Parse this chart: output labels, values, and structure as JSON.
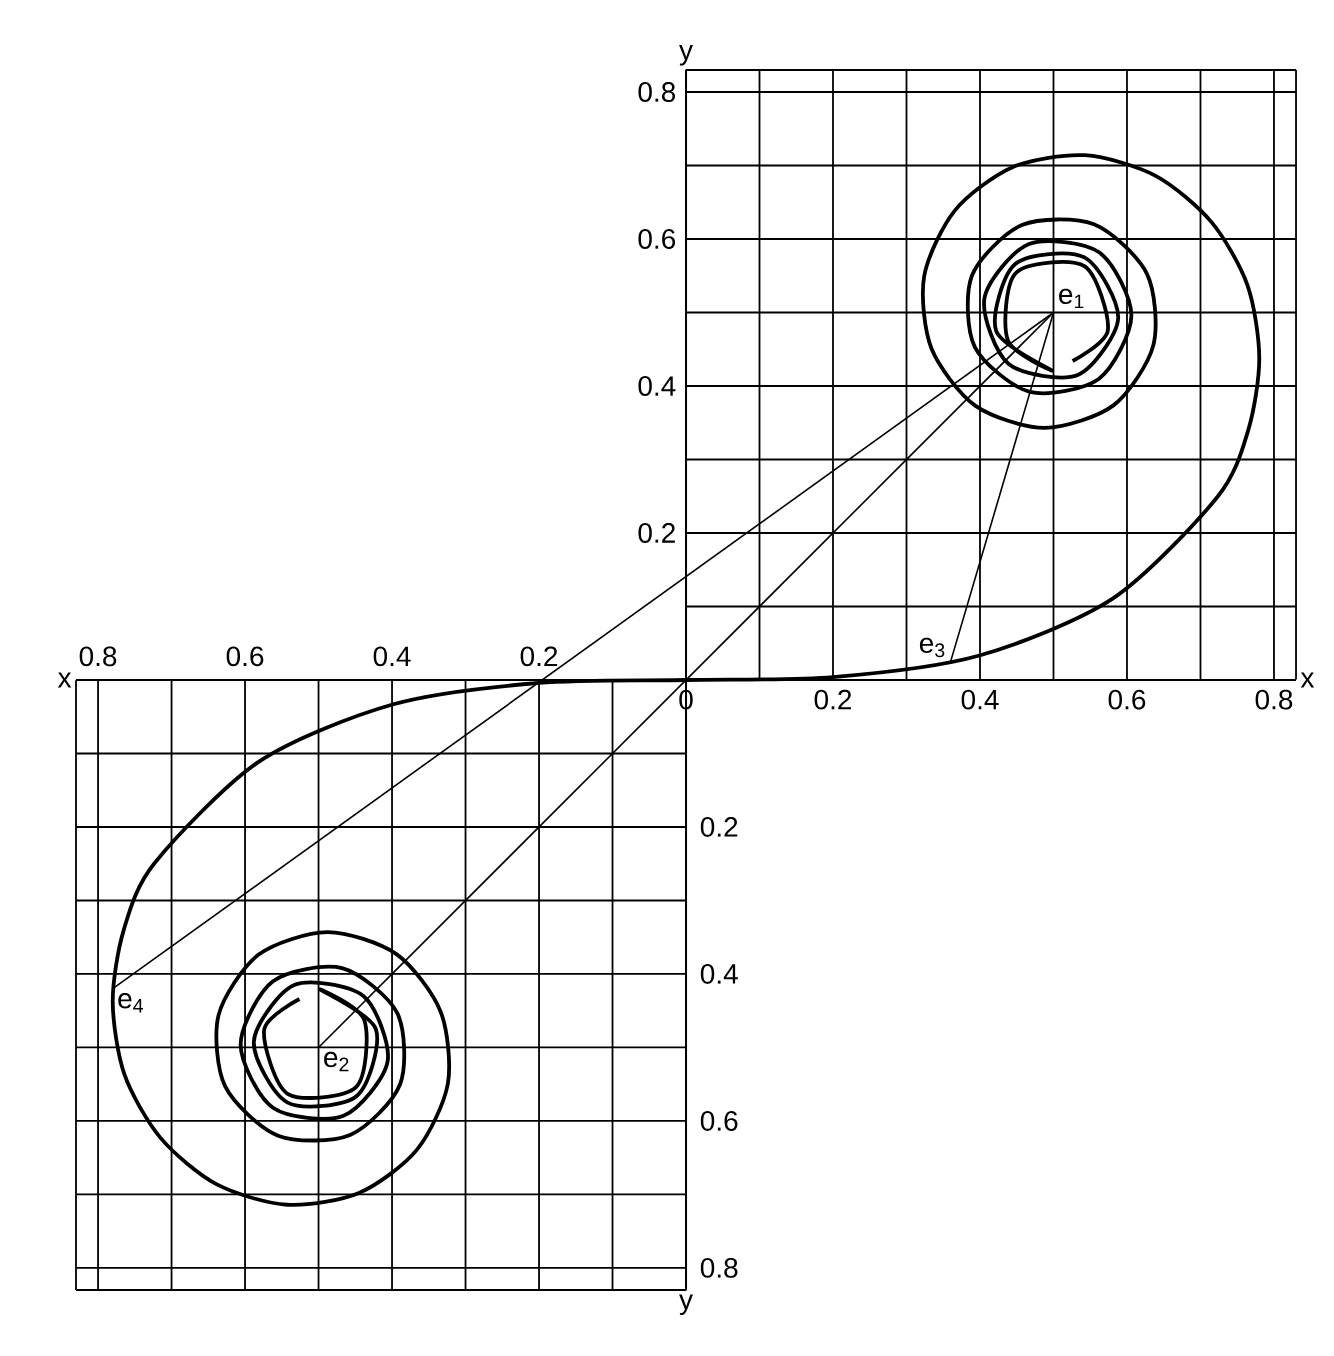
{
  "chart_data": {
    "type": "line",
    "xlabel": "x",
    "ylabel": "y",
    "xlim": [
      -0.83,
      0.83
    ],
    "ylim": [
      -0.83,
      0.83
    ],
    "x2lim": [
      -0.83,
      0.83
    ],
    "y2lim": [
      -0.83,
      0.83
    ],
    "grid": true,
    "xticks": [
      0,
      0.2,
      0.4,
      0.6,
      0.8
    ],
    "x2ticks": [
      {
        "value": -0.8,
        "label": "0.8"
      },
      {
        "value": -0.6,
        "label": "0.6"
      },
      {
        "value": -0.4,
        "label": "0.4"
      },
      {
        "value": -0.2,
        "label": "0.2"
      }
    ],
    "yticks": [
      0.2,
      0.4,
      0.6,
      0.8
    ],
    "y2ticks": [
      {
        "value": -0.2,
        "label": "0.2"
      },
      {
        "value": -0.4,
        "label": "0.4"
      },
      {
        "value": -0.6,
        "label": "0.6"
      },
      {
        "value": -0.8,
        "label": "0.8"
      }
    ],
    "series": [
      {
        "color": "#000000",
        "x": [
          -0.526,
          -0.574,
          -0.542,
          -0.449,
          -0.438,
          -0.498,
          -0.422,
          -0.448,
          -0.542,
          -0.588,
          -0.533,
          -0.439,
          -0.406,
          -0.466,
          -0.562,
          -0.606,
          -0.562,
          -0.468,
          -0.393,
          -0.389,
          -0.457,
          -0.555,
          -0.627,
          -0.636,
          -0.582,
          -0.488,
          -0.394,
          -0.334,
          -0.324,
          -0.366,
          -0.445,
          -0.543,
          -0.639,
          -0.715,
          -0.764,
          -0.78,
          -0.765,
          -0.723,
          -0.581,
          -0.398,
          -0.2,
          0,
          0.2,
          0.398,
          0.581,
          0.723,
          0.765,
          0.78,
          0.764,
          0.715,
          0.639,
          0.543,
          0.445,
          0.366,
          0.324,
          0.334,
          0.394,
          0.488,
          0.582,
          0.636,
          0.627,
          0.555,
          0.457,
          0.389,
          0.393,
          0.468,
          0.562,
          0.606,
          0.562,
          0.466,
          0.406,
          0.439,
          0.533,
          0.588,
          0.542,
          0.448,
          0.422,
          0.498,
          0.438,
          0.449,
          0.542,
          0.574,
          0.526
        ],
        "values": [
          -0.434,
          -0.476,
          -0.563,
          -0.554,
          -0.462,
          -0.421,
          -0.475,
          -0.566,
          -0.575,
          -0.492,
          -0.415,
          -0.43,
          -0.519,
          -0.593,
          -0.582,
          -0.496,
          -0.41,
          -0.392,
          -0.453,
          -0.55,
          -0.619,
          -0.62,
          -0.553,
          -0.456,
          -0.374,
          -0.343,
          -0.373,
          -0.451,
          -0.549,
          -0.639,
          -0.698,
          -0.714,
          -0.686,
          -0.623,
          -0.537,
          -0.438,
          -0.34,
          -0.249,
          -0.111,
          -0.033,
          -0.004,
          0,
          0.004,
          0.033,
          0.111,
          0.249,
          0.34,
          0.438,
          0.537,
          0.623,
          0.686,
          0.714,
          0.698,
          0.639,
          0.549,
          0.451,
          0.373,
          0.343,
          0.374,
          0.456,
          0.553,
          0.62,
          0.619,
          0.55,
          0.453,
          0.392,
          0.41,
          0.496,
          0.582,
          0.593,
          0.519,
          0.43,
          0.415,
          0.492,
          0.575,
          0.566,
          0.475,
          0.421,
          0.462,
          0.554,
          0.563,
          0.476,
          0.434
        ]
      },
      {
        "color": "#000000",
        "x": [
          -0.78,
          0.5
        ],
        "values": [
          -0.42,
          0.5
        ]
      },
      {
        "color": "#000000",
        "x": [
          -0.5,
          0.5
        ],
        "values": [
          -0.5,
          0.5
        ]
      },
      {
        "color": "#000000",
        "x": [
          0.36,
          0.5
        ],
        "values": [
          0.025,
          0.5
        ]
      }
    ],
    "annotations": [
      {
        "text": "e$_{1}$",
        "x": 0.5,
        "y": 0.5
      },
      {
        "text": "e$_{2}$",
        "x": -0.5,
        "y": -0.5
      },
      {
        "text": "e$_{3}$",
        "x": 0.36,
        "y": 0.025
      },
      {
        "text": "e$_{4}$",
        "x": -0.78,
        "y": -0.42
      }
    ]
  }
}
